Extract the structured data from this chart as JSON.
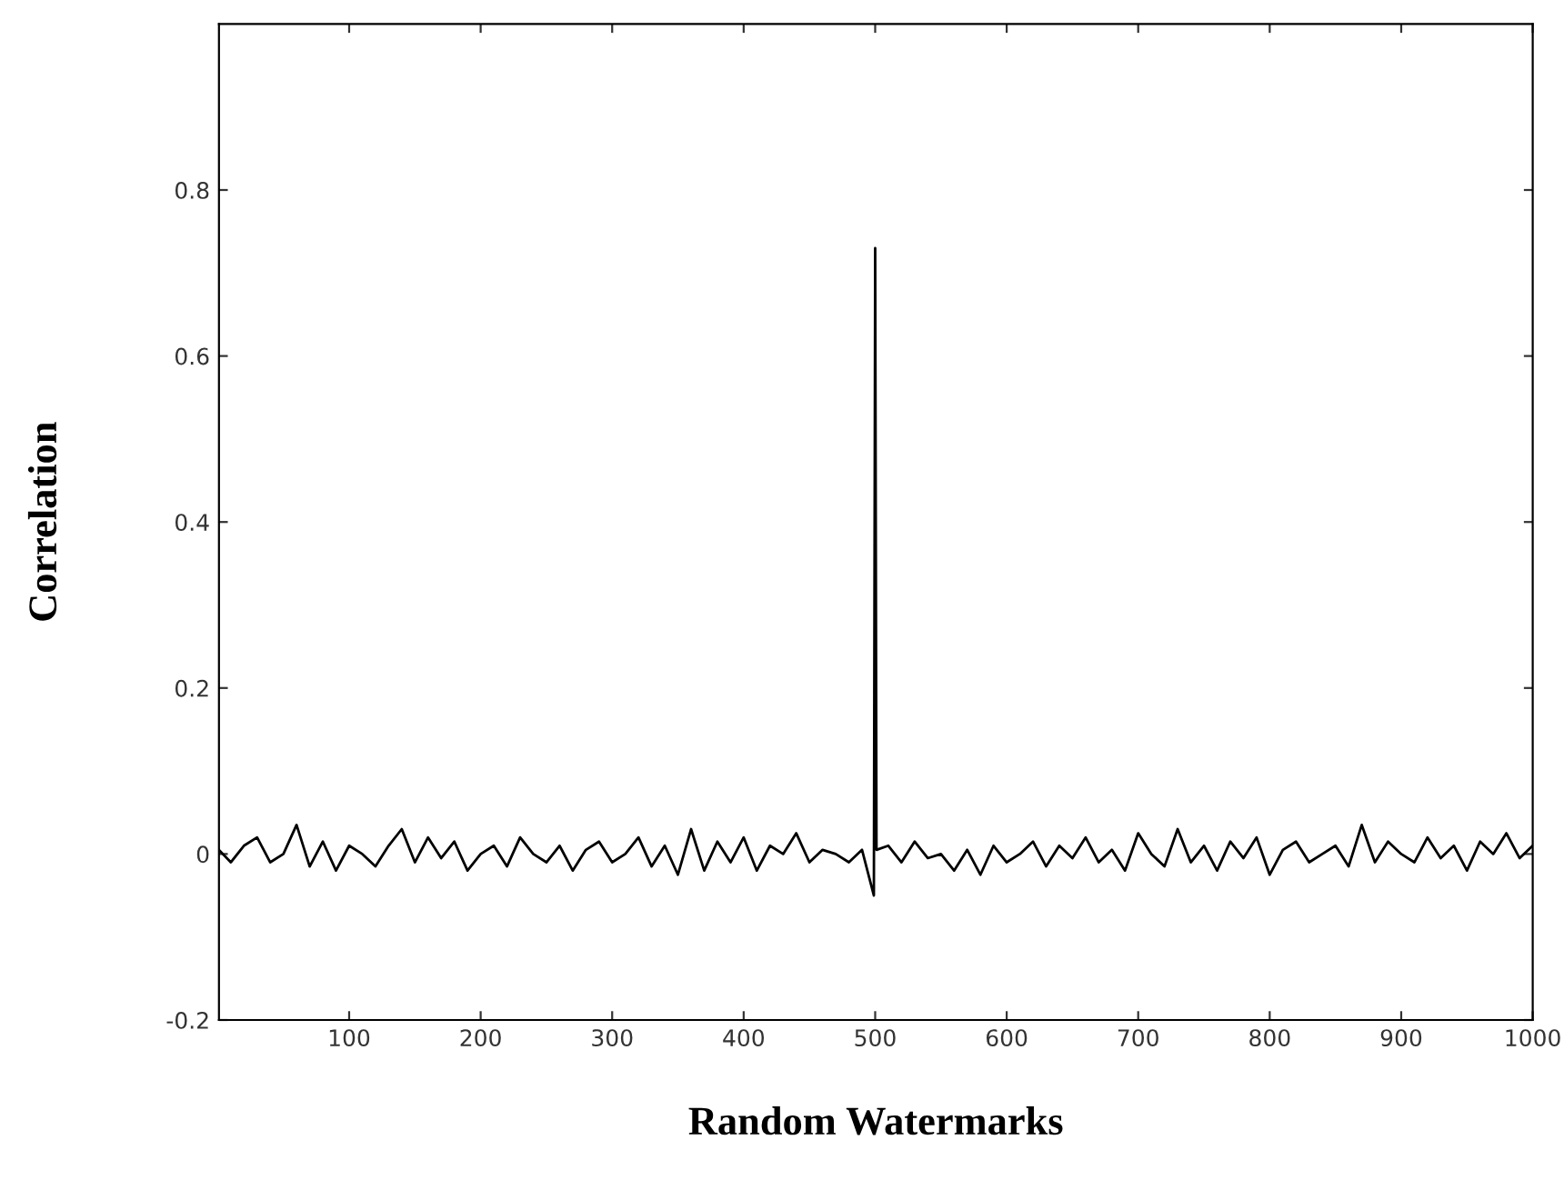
{
  "chart_data": {
    "type": "line",
    "xlabel": "Random Watermarks",
    "ylabel": "Correlation",
    "x": [
      1,
      10,
      20,
      30,
      40,
      50,
      60,
      70,
      80,
      90,
      100,
      110,
      120,
      130,
      140,
      150,
      160,
      170,
      180,
      190,
      200,
      210,
      220,
      230,
      240,
      250,
      260,
      270,
      280,
      290,
      300,
      310,
      320,
      330,
      340,
      350,
      360,
      370,
      380,
      390,
      400,
      410,
      420,
      430,
      440,
      450,
      460,
      470,
      480,
      490,
      499,
      500,
      501,
      510,
      520,
      530,
      540,
      550,
      560,
      570,
      580,
      590,
      600,
      610,
      620,
      630,
      640,
      650,
      660,
      670,
      680,
      690,
      700,
      710,
      720,
      730,
      740,
      750,
      760,
      770,
      780,
      790,
      800,
      810,
      820,
      830,
      840,
      850,
      860,
      870,
      880,
      890,
      900,
      910,
      920,
      930,
      940,
      950,
      960,
      970,
      980,
      990,
      1000
    ],
    "series": [
      {
        "color": "#000000",
        "values": [
          0.005,
          -0.01,
          0.01,
          0.02,
          -0.01,
          0.0,
          0.035,
          -0.015,
          0.015,
          -0.02,
          0.01,
          0.0,
          -0.015,
          0.01,
          0.03,
          -0.01,
          0.02,
          -0.005,
          0.015,
          -0.02,
          0.0,
          0.01,
          -0.015,
          0.02,
          0.0,
          -0.01,
          0.01,
          -0.02,
          0.005,
          0.015,
          -0.01,
          0.0,
          0.02,
          -0.015,
          0.01,
          -0.025,
          0.03,
          -0.02,
          0.015,
          -0.01,
          0.02,
          -0.02,
          0.01,
          0.0,
          0.025,
          -0.01,
          0.005,
          0.0,
          -0.01,
          0.005,
          -0.05,
          0.73,
          0.005,
          0.01,
          -0.01,
          0.015,
          -0.005,
          0.0,
          -0.02,
          0.005,
          -0.025,
          0.01,
          -0.01,
          0.0,
          0.015,
          -0.015,
          0.01,
          -0.005,
          0.02,
          -0.01,
          0.005,
          -0.02,
          0.025,
          0.0,
          -0.015,
          0.03,
          -0.01,
          0.01,
          -0.02,
          0.015,
          -0.005,
          0.02,
          -0.025,
          0.005,
          0.015,
          -0.01,
          0.0,
          0.01,
          -0.015,
          0.035,
          -0.01,
          0.015,
          0.0,
          -0.01,
          0.02,
          -0.005,
          0.01,
          -0.02,
          0.015,
          0.0,
          0.025,
          -0.005,
          0.01
        ]
      }
    ],
    "xlim": [
      1,
      1000
    ],
    "ylim": [
      -0.2,
      1.0
    ],
    "xticks": [
      100,
      200,
      300,
      400,
      500,
      600,
      700,
      800,
      900,
      1000
    ],
    "yticks": [
      -0.2,
      0,
      0.2,
      0.4,
      0.6,
      0.8
    ],
    "grid": false,
    "line_style": "solid"
  }
}
